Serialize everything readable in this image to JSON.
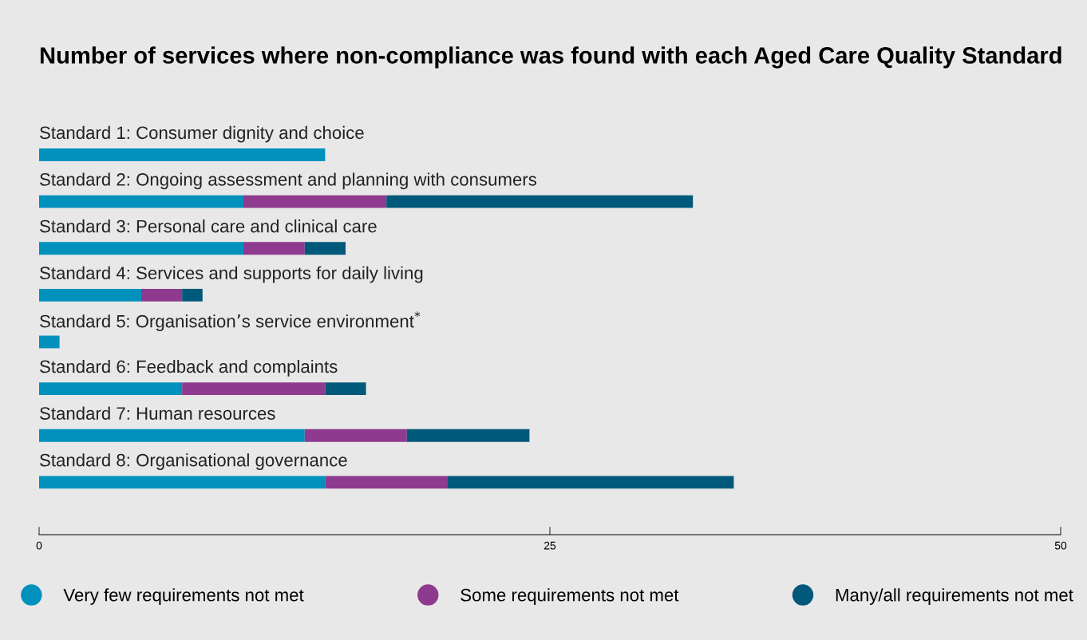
{
  "chart_data": {
    "type": "bar",
    "orientation": "horizontal",
    "stacked": true,
    "title": "Number of services where non-compliance was found with each Aged Care Quality Standard",
    "categories": [
      "Standard 1: Consumer dignity and choice",
      "Standard 2: Ongoing assessment and planning with consumers",
      "Standard 3: Personal care and clinical care",
      "Standard 4: Services and supports for daily living",
      "Standard 5: Organisation’s service environment$^{*}$",
      "Standard 6: Feedback and complaints",
      "Standard 7: Human resources",
      "Standard 8: Organisational governance"
    ],
    "series": [
      {
        "name": "Very few requirements not met",
        "color": "#0091bd",
        "values": [
          14,
          10,
          10,
          5,
          1,
          7,
          13,
          14
        ]
      },
      {
        "name": "Some requirements not met",
        "color": "#8e3a8e",
        "values": [
          0,
          7,
          3,
          2,
          0,
          7,
          5,
          6
        ]
      },
      {
        "name": "Many/all requirements not met",
        "color": "#00587a",
        "values": [
          0,
          15,
          2,
          1,
          0,
          2,
          6,
          14
        ]
      }
    ],
    "xlim": [
      0,
      50
    ],
    "xticks": [
      0,
      25,
      50
    ],
    "grid": false,
    "legend": "bottom"
  }
}
